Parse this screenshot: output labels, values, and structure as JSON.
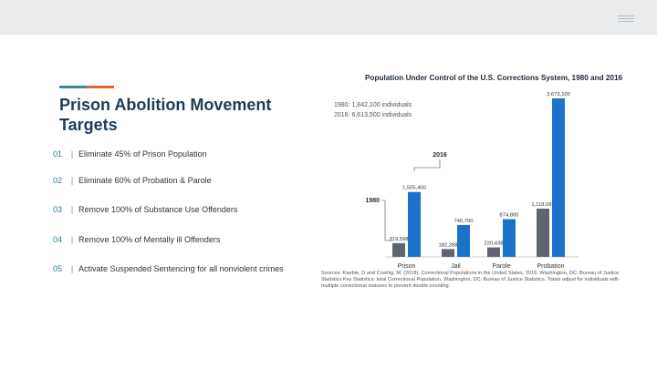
{
  "slide": {
    "title": "Prison Abolition Movement Targets",
    "accent_colors": [
      "#2f8f9d",
      "#e2652b"
    ],
    "targets": [
      {
        "num": "01",
        "text": "Eliminate 45% of Prison Population"
      },
      {
        "num": "02",
        "text": "Eliminate 60% of Probation & Parole"
      },
      {
        "num": "03",
        "text": "Remove 100% of Substance Use Offenders"
      },
      {
        "num": "04",
        "text": "Remove 100% of Mentally ill Offenders"
      },
      {
        "num": "05",
        "text": "Activate Suspended Sentencing for all nonviolent crimes"
      }
    ]
  },
  "chart_data": {
    "type": "bar",
    "title": "Population Under Control of the U.S. Corrections System, 1980 and 2016",
    "summary_lines": [
      "1980: 1,842,100 individuals",
      "2016: 6,613,500 individuals"
    ],
    "categories": [
      "Prison",
      "Jail",
      "Parole",
      "Probation"
    ],
    "series": [
      {
        "name": "1980",
        "color": "#5f6470",
        "values": [
          319598,
          182288,
          220438,
          1118097
        ],
        "labels": [
          "319,598",
          "182,288",
          "220,438",
          "1,118,097"
        ]
      },
      {
        "name": "2016",
        "color": "#1a73c9",
        "values": [
          1505400,
          740700,
          874800,
          3673100
        ],
        "labels": [
          "1,505,400",
          "740,700",
          "874,800",
          "3,673,100"
        ]
      }
    ],
    "ylim": [
      0,
      3800000
    ],
    "source": "Sources: Kaeble, D and Cowhig, M. (2018). Correctional Populations in the United States, 2016. Washington, DC: Bureau of Justice Statistics Key Statistics: total Correctional Population. Washington, DC: Bureau of Justice Statistics. Totals adjust for individuals with multiple correctional statuses to prevent double counting."
  }
}
